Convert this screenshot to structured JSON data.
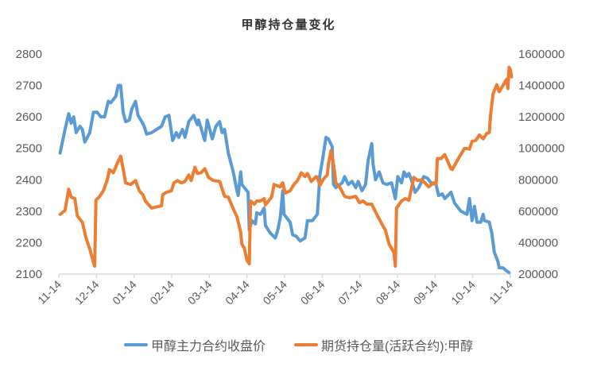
{
  "chart_data": {
    "type": "line",
    "title": "甲醇持仓量变化",
    "x_tick_labels": [
      "11-14",
      "12-14",
      "01-14",
      "02-14",
      "03-14",
      "04-14",
      "05-14",
      "06-14",
      "07-14",
      "08-14",
      "09-14",
      "10-14",
      "11-14"
    ],
    "left_axis": {
      "ticks": [
        "2100",
        "2200",
        "2300",
        "2400",
        "2500",
        "2600",
        "2700",
        "2800"
      ],
      "ylim": [
        2100,
        2800
      ]
    },
    "right_axis": {
      "ticks": [
        "200000",
        "400000",
        "600000",
        "800000",
        "1000000",
        "1200000",
        "1400000",
        "1600000"
      ],
      "ylim": [
        200000,
        1600000
      ]
    },
    "grid": false,
    "legend_position": "bottom",
    "series": [
      {
        "name": "甲醇主力合约收盘价",
        "axis": "left",
        "color": "#5b9bd5",
        "x": [
          "11-15",
          "11-19",
          "11-22",
          "11-24",
          "11-26",
          "11-28",
          "12-01",
          "12-03",
          "12-05",
          "12-09",
          "12-12",
          "12-15",
          "12-18",
          "12-21",
          "12-24",
          "12-26",
          "12-30",
          "01-01",
          "01-03",
          "01-05",
          "01-07",
          "01-10",
          "01-12",
          "01-15",
          "01-17",
          "01-20",
          "01-22",
          "01-24",
          "01-28",
          "02-05",
          "02-08",
          "02-11",
          "02-14",
          "02-17",
          "02-19",
          "02-22",
          "02-24",
          "02-27",
          "03-03",
          "03-06",
          "03-07",
          "03-12",
          "03-14",
          "03-15",
          "03-18",
          "03-21",
          "03-24",
          "03-26",
          "03-28",
          "03-31",
          "04-04",
          "04-07",
          "04-08",
          "04-10",
          "04-11",
          "04-13",
          "04-16",
          "04-17",
          "04-19",
          "04-22",
          "04-23",
          "04-26",
          "04-29",
          "04-30",
          "05-04",
          "05-08",
          "05-10",
          "05-12",
          "05-14",
          "05-15",
          "05-20",
          "05-22",
          "05-25",
          "05-28",
          "06-01",
          "06-03",
          "06-07",
          "06-11",
          "06-13",
          "06-15",
          "06-18",
          "06-20",
          "06-23",
          "06-24",
          "06-26",
          "07-01",
          "07-03",
          "07-06",
          "07-09",
          "07-12",
          "07-14",
          "07-17",
          "07-20",
          "07-22",
          "07-25",
          "07-26",
          "07-28",
          "07-31",
          "08-03",
          "08-06",
          "08-10",
          "08-13",
          "08-15",
          "08-18",
          "08-20",
          "08-22",
          "08-24",
          "08-26",
          "08-29",
          "09-01",
          "09-05",
          "09-08",
          "09-11",
          "09-15",
          "09-17",
          "09-20",
          "09-22",
          "09-27",
          "09-30",
          "10-05",
          "10-10",
          "10-12",
          "10-14",
          "10-16",
          "10-18",
          "10-21",
          "10-23",
          "10-24",
          "10-28",
          "10-30",
          "11-01",
          "11-04",
          "11-05",
          "11-08",
          "11-11",
          "11-13"
        ],
        "values": [
          2485,
          2560,
          2610,
          2580,
          2600,
          2550,
          2570,
          2560,
          2520,
          2550,
          2615,
          2615,
          2600,
          2600,
          2650,
          2645,
          2665,
          2700,
          2700,
          2615,
          2585,
          2590,
          2625,
          2650,
          2605,
          2585,
          2570,
          2545,
          2550,
          2570,
          2600,
          2605,
          2525,
          2550,
          2535,
          2560,
          2535,
          2585,
          2605,
          2575,
          2590,
          2525,
          2590,
          2575,
          2530,
          2570,
          2585,
          2550,
          2560,
          2485,
          2425,
          2365,
          2350,
          2425,
          2385,
          2375,
          2360,
          2240,
          2270,
          2260,
          2295,
          2290,
          2310,
          2255,
          2230,
          2215,
          2240,
          2280,
          2365,
          2290,
          2265,
          2225,
          2220,
          2205,
          2215,
          2270,
          2270,
          2290,
          2415,
          2460,
          2535,
          2530,
          2505,
          2385,
          2375,
          2390,
          2410,
          2385,
          2395,
          2375,
          2395,
          2365,
          2385,
          2460,
          2515,
          2450,
          2400,
          2425,
          2390,
          2385,
          2390,
          2340,
          2410,
          2390,
          2425,
          2410,
          2420,
          2400,
          2360,
          2375,
          2410,
          2405,
          2390,
          2385,
          2350,
          2355,
          2340,
          2360,
          2325,
          2300,
          2290,
          2340,
          2270,
          2315,
          2265,
          2265,
          2290,
          2270,
          2265,
          2230,
          2170,
          2140,
          2120,
          2120,
          2110,
          2105
        ]
      },
      {
        "name": "期货持仓量(活跃合约):甲醇",
        "axis": "right",
        "color": "#ed7d31",
        "x": [
          "11-15",
          "11-19",
          "11-22",
          "11-24",
          "11-27",
          "11-29",
          "12-03",
          "12-06",
          "12-09",
          "12-12",
          "12-13",
          "12-14",
          "12-17",
          "12-20",
          "12-23",
          "12-25",
          "12-28",
          "12-31",
          "01-03",
          "01-05",
          "01-07",
          "01-11",
          "01-15",
          "01-18",
          "01-21",
          "01-23",
          "01-28",
          "02-05",
          "02-06",
          "02-09",
          "02-13",
          "02-15",
          "02-18",
          "02-21",
          "02-24",
          "02-27",
          "03-01",
          "03-04",
          "03-06",
          "03-09",
          "03-12",
          "03-15",
          "03-19",
          "03-24",
          "03-28",
          "03-31",
          "04-04",
          "04-07",
          "04-10",
          "04-11",
          "04-13",
          "04-15",
          "04-17",
          "04-18",
          "04-21",
          "04-23",
          "04-26",
          "04-29",
          "04-30",
          "05-05",
          "05-07",
          "05-12",
          "05-14",
          "05-16",
          "05-20",
          "05-23",
          "05-26",
          "05-29",
          "06-01",
          "06-03",
          "06-06",
          "06-10",
          "06-11",
          "06-13",
          "06-16",
          "06-19",
          "06-20",
          "06-22",
          "06-24",
          "06-26",
          "06-29",
          "07-03",
          "07-07",
          "07-12",
          "07-15",
          "07-18",
          "07-21",
          "07-25",
          "07-28",
          "08-02",
          "08-05",
          "08-08",
          "08-12",
          "08-13",
          "08-14",
          "08-18",
          "08-21",
          "08-24",
          "08-28",
          "08-31",
          "09-03",
          "09-06",
          "09-09",
          "09-13",
          "09-15",
          "09-16",
          "09-19",
          "09-22",
          "09-27",
          "09-28",
          "10-03",
          "10-08",
          "10-12",
          "10-14",
          "10-17",
          "10-20",
          "10-23",
          "10-26",
          "10-28",
          "10-29",
          "10-31",
          "11-03",
          "11-05",
          "11-08",
          "11-11",
          "11-12",
          "11-13",
          "11-14",
          "11-15"
        ],
        "values": [
          580000,
          605000,
          740000,
          690000,
          680000,
          570000,
          530000,
          430000,
          360000,
          275000,
          250000,
          670000,
          695000,
          730000,
          795000,
          865000,
          845000,
          900000,
          950000,
          870000,
          780000,
          770000,
          795000,
          730000,
          705000,
          665000,
          620000,
          635000,
          705000,
          720000,
          730000,
          780000,
          795000,
          780000,
          790000,
          830000,
          795000,
          880000,
          840000,
          845000,
          870000,
          815000,
          795000,
          790000,
          695000,
          690000,
          615000,
          565000,
          465000,
          390000,
          365000,
          290000,
          265000,
          665000,
          645000,
          665000,
          665000,
          680000,
          640000,
          690000,
          770000,
          755000,
          780000,
          715000,
          730000,
          770000,
          795000,
          845000,
          820000,
          840000,
          790000,
          820000,
          815000,
          765000,
          805000,
          830000,
          900000,
          985000,
          900000,
          780000,
          755000,
          695000,
          685000,
          695000,
          655000,
          665000,
          645000,
          645000,
          595000,
          520000,
          480000,
          390000,
          335000,
          250000,
          620000,
          665000,
          680000,
          670000,
          815000,
          795000,
          800000,
          780000,
          755000,
          780000,
          770000,
          935000,
          935000,
          960000,
          870000,
          865000,
          935000,
          1000000,
          995000,
          1045000,
          1050000,
          1085000,
          1060000,
          1095000,
          1100000,
          1210000,
          1345000,
          1405000,
          1360000,
          1400000,
          1440000,
          1380000,
          1515000,
          1500000,
          1455000
        ]
      }
    ]
  }
}
